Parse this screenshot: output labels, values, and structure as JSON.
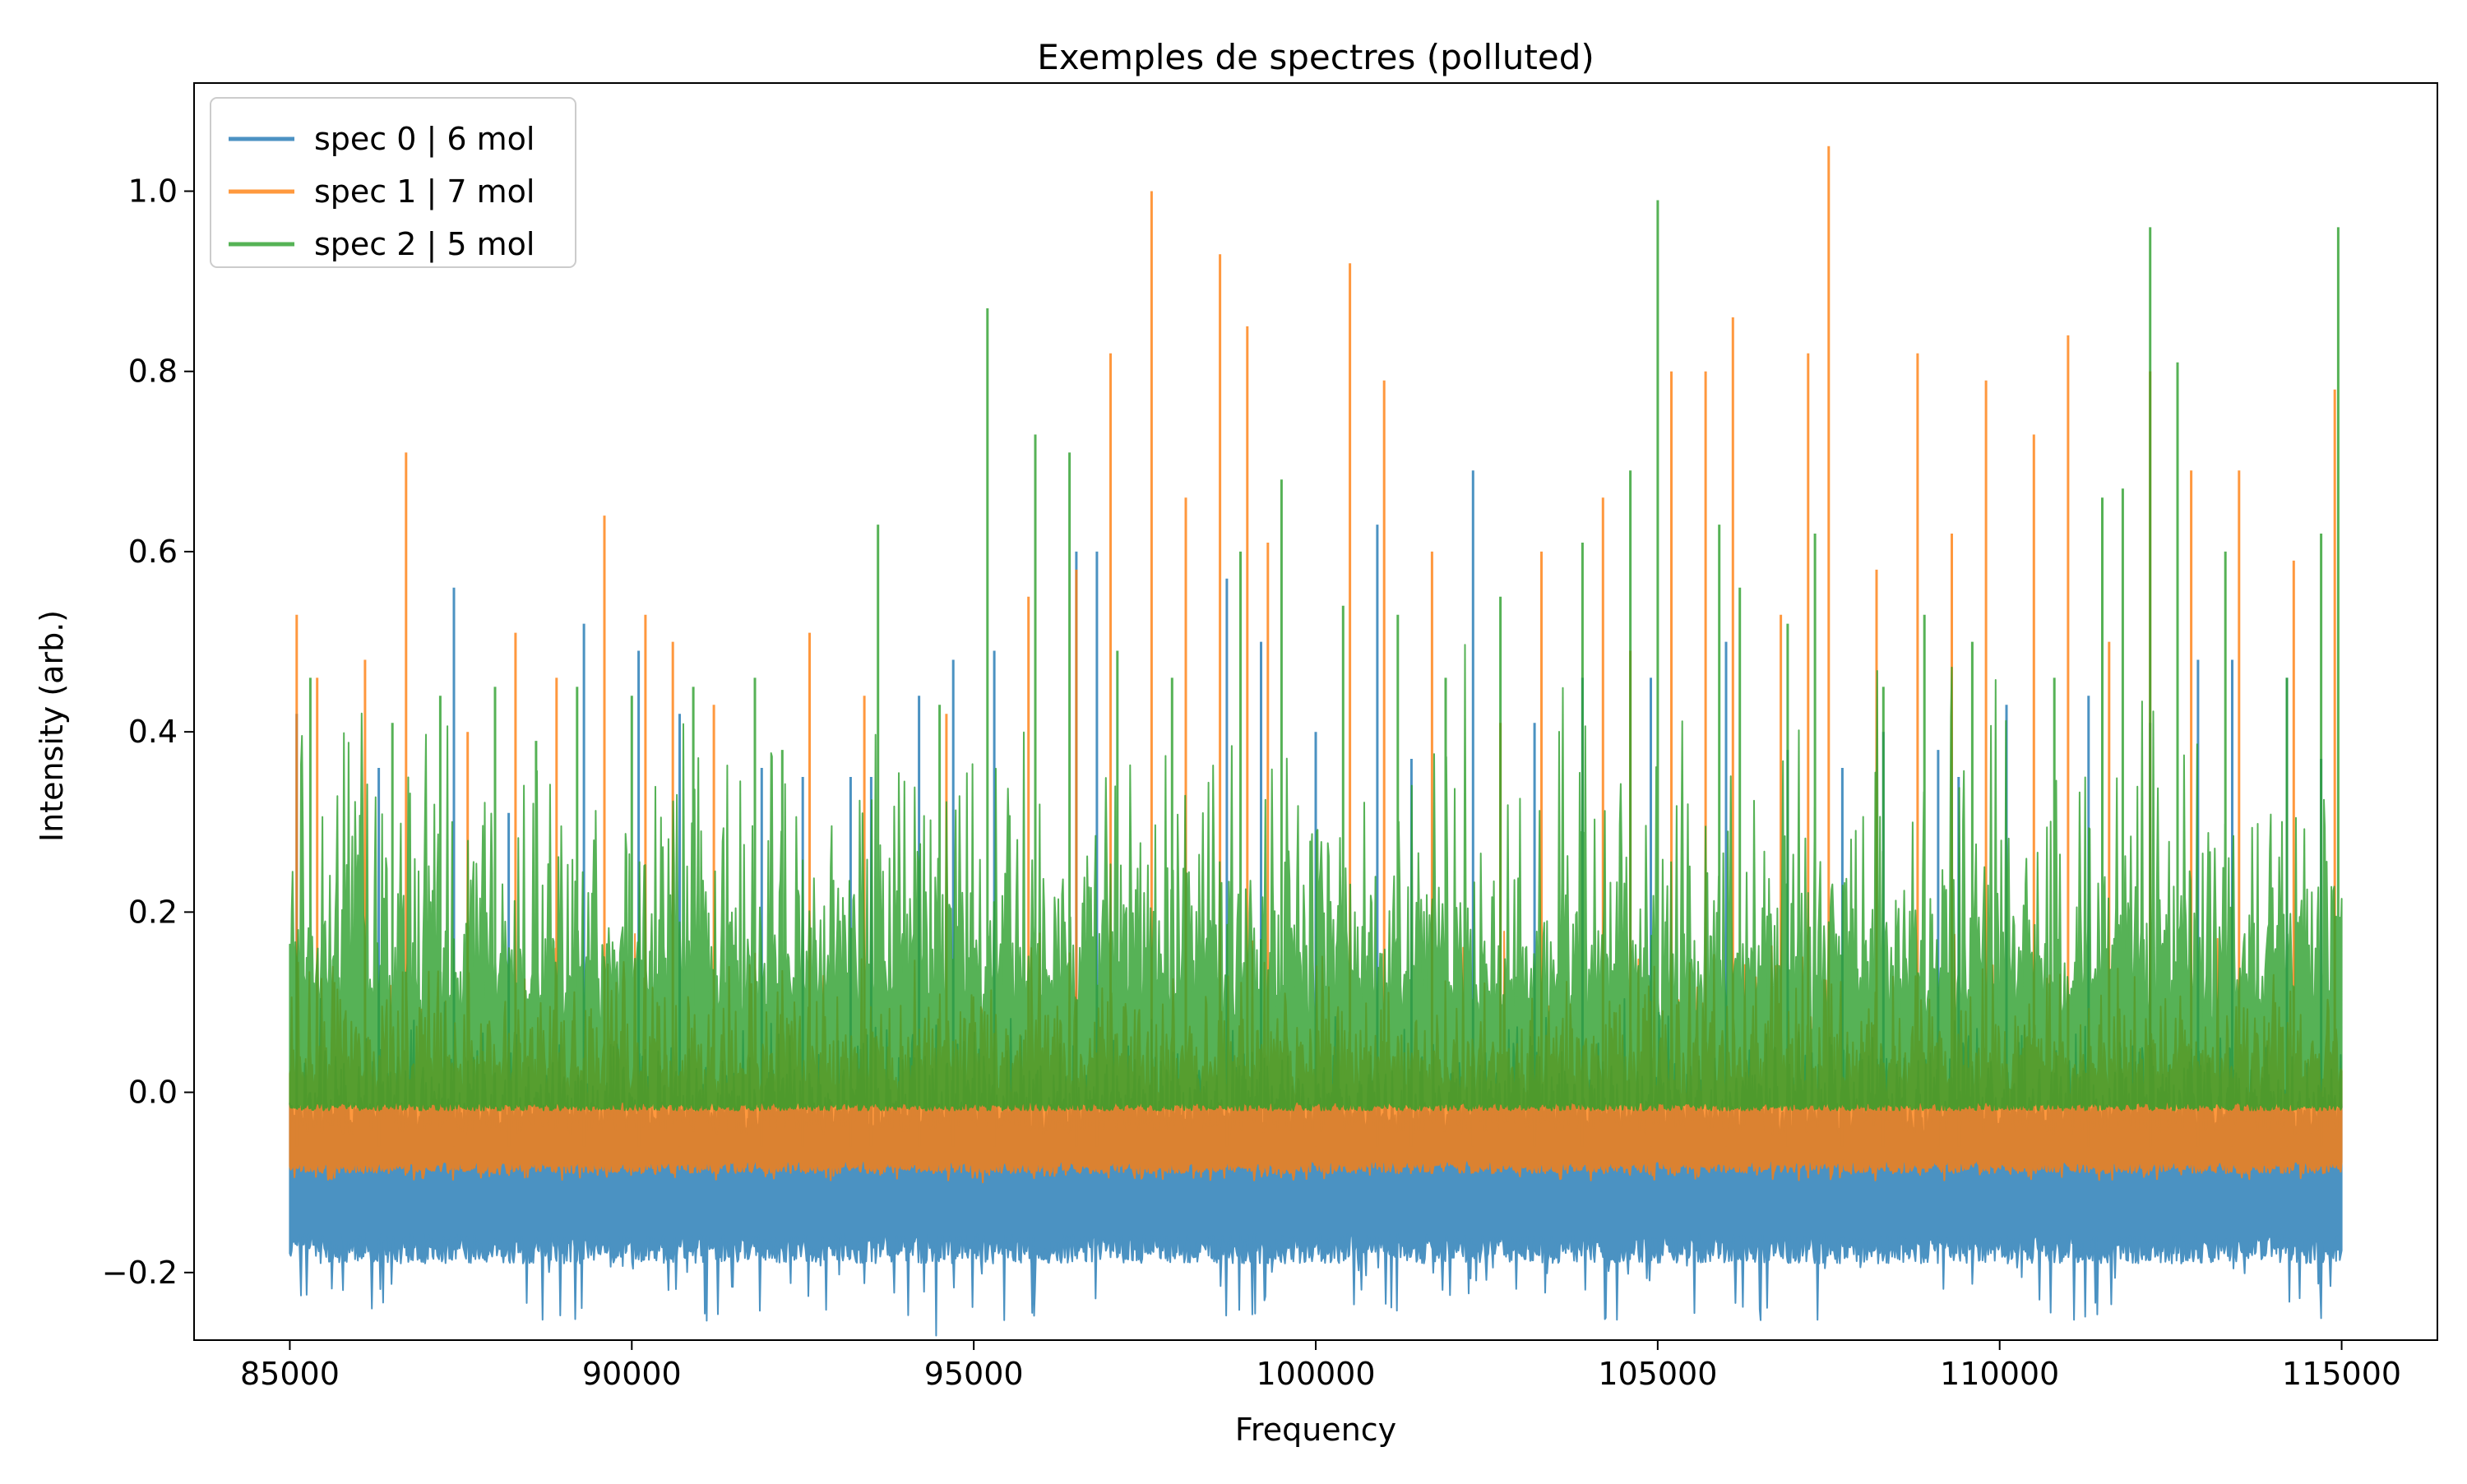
{
  "chart_data": {
    "type": "line",
    "title": "Exemples de spectres (polluted)",
    "xlabel": "Frequency",
    "ylabel": "Intensity (arb.)",
    "xlim": [
      83600,
      116400
    ],
    "ylim": [
      -0.275,
      1.12
    ],
    "x_range": [
      85000,
      115000
    ],
    "xticks": [
      85000,
      90000,
      95000,
      100000,
      105000,
      110000,
      115000
    ],
    "xtick_labels": [
      "85000",
      "90000",
      "95000",
      "100000",
      "105000",
      "110000",
      "115000"
    ],
    "yticks": [
      -0.2,
      0.0,
      0.2,
      0.4,
      0.6,
      0.8,
      1.0
    ],
    "ytick_labels": [
      "−0.2",
      "0.0",
      "0.2",
      "0.4",
      "0.6",
      "0.8",
      "1.0"
    ],
    "grid": false,
    "legend_position": "top-left",
    "series": [
      {
        "name": "spec 0 | 6 mol",
        "color": "#1f77b4",
        "opacity": 0.8,
        "baseline_band": [
          -0.19,
          -0.06
        ],
        "noise_upper": 0.09,
        "min_value": -0.27,
        "peaks": [
          [
            85100,
            0.42
          ],
          [
            86300,
            0.36
          ],
          [
            87400,
            0.56
          ],
          [
            88200,
            0.31
          ],
          [
            89300,
            0.52
          ],
          [
            90100,
            0.49
          ],
          [
            90700,
            0.42
          ],
          [
            91900,
            0.36
          ],
          [
            92500,
            0.35
          ],
          [
            93200,
            0.35
          ],
          [
            93500,
            0.35
          ],
          [
            94200,
            0.44
          ],
          [
            94700,
            0.48
          ],
          [
            95300,
            0.49
          ],
          [
            96500,
            0.6
          ],
          [
            96800,
            0.6
          ],
          [
            98700,
            0.57
          ],
          [
            99200,
            0.5
          ],
          [
            100000,
            0.4
          ],
          [
            100900,
            0.63
          ],
          [
            101400,
            0.37
          ],
          [
            102300,
            0.69
          ],
          [
            103200,
            0.41
          ],
          [
            103900,
            0.46
          ],
          [
            104900,
            0.46
          ],
          [
            106000,
            0.5
          ],
          [
            106900,
            0.38
          ],
          [
            107700,
            0.36
          ],
          [
            108300,
            0.4
          ],
          [
            109100,
            0.38
          ],
          [
            109400,
            0.35
          ],
          [
            110100,
            0.43
          ],
          [
            111300,
            0.44
          ],
          [
            112200,
            0.41
          ],
          [
            112900,
            0.48
          ],
          [
            113400,
            0.48
          ],
          [
            114200,
            0.46
          ],
          [
            114700,
            0.37
          ]
        ]
      },
      {
        "name": "spec 1 | 7 mol",
        "color": "#ff7f0e",
        "opacity": 0.8,
        "baseline_band": [
          -0.09,
          -0.03
        ],
        "noise_upper": 0.12,
        "min_value": -0.1,
        "peaks": [
          [
            85100,
            0.53
          ],
          [
            85400,
            0.46
          ],
          [
            86100,
            0.48
          ],
          [
            86700,
            0.71
          ],
          [
            87600,
            0.4
          ],
          [
            88300,
            0.51
          ],
          [
            88900,
            0.46
          ],
          [
            89600,
            0.64
          ],
          [
            90200,
            0.53
          ],
          [
            90600,
            0.5
          ],
          [
            91200,
            0.43
          ],
          [
            92600,
            0.51
          ],
          [
            93400,
            0.44
          ],
          [
            94600,
            0.42
          ],
          [
            95800,
            0.55
          ],
          [
            96500,
            0.58
          ],
          [
            97000,
            0.82
          ],
          [
            97600,
            1.0
          ],
          [
            98100,
            0.66
          ],
          [
            98600,
            0.93
          ],
          [
            99000,
            0.85
          ],
          [
            99300,
            0.61
          ],
          [
            100500,
            0.92
          ],
          [
            101000,
            0.79
          ],
          [
            101700,
            0.6
          ],
          [
            102700,
            0.41
          ],
          [
            103300,
            0.6
          ],
          [
            104200,
            0.66
          ],
          [
            104600,
            0.49
          ],
          [
            105200,
            0.8
          ],
          [
            105700,
            0.8
          ],
          [
            106100,
            0.86
          ],
          [
            106800,
            0.53
          ],
          [
            107200,
            0.82
          ],
          [
            107500,
            1.05
          ],
          [
            108200,
            0.58
          ],
          [
            108800,
            0.82
          ],
          [
            109300,
            0.62
          ],
          [
            109800,
            0.79
          ],
          [
            110500,
            0.73
          ],
          [
            111000,
            0.84
          ],
          [
            111600,
            0.5
          ],
          [
            112200,
            0.8
          ],
          [
            112800,
            0.69
          ],
          [
            113500,
            0.69
          ],
          [
            114300,
            0.59
          ],
          [
            114900,
            0.78
          ]
        ]
      },
      {
        "name": "spec 2 | 5 mol",
        "color": "#2ca02c",
        "opacity": 0.8,
        "baseline_band": [
          -0.02,
          0.02
        ],
        "noise_upper": 0.25,
        "min_value": -0.02,
        "peaks": [
          [
            85300,
            0.46
          ],
          [
            86500,
            0.41
          ],
          [
            87200,
            0.44
          ],
          [
            88000,
            0.45
          ],
          [
            88600,
            0.39
          ],
          [
            89200,
            0.45
          ],
          [
            90000,
            0.44
          ],
          [
            90900,
            0.45
          ],
          [
            91800,
            0.46
          ],
          [
            92200,
            0.38
          ],
          [
            93600,
            0.63
          ],
          [
            94500,
            0.43
          ],
          [
            95200,
            0.87
          ],
          [
            95900,
            0.73
          ],
          [
            96400,
            0.71
          ],
          [
            97100,
            0.49
          ],
          [
            97900,
            0.46
          ],
          [
            98900,
            0.6
          ],
          [
            99500,
            0.68
          ],
          [
            100400,
            0.54
          ],
          [
            101200,
            0.53
          ],
          [
            101900,
            0.46
          ],
          [
            102700,
            0.55
          ],
          [
            103900,
            0.61
          ],
          [
            104600,
            0.69
          ],
          [
            105000,
            0.99
          ],
          [
            105900,
            0.63
          ],
          [
            106200,
            0.56
          ],
          [
            106900,
            0.52
          ],
          [
            107300,
            0.62
          ],
          [
            108300,
            0.45
          ],
          [
            108900,
            0.53
          ],
          [
            109600,
            0.5
          ],
          [
            110800,
            0.46
          ],
          [
            111500,
            0.66
          ],
          [
            111800,
            0.67
          ],
          [
            112200,
            0.96
          ],
          [
            112600,
            0.81
          ],
          [
            113300,
            0.6
          ],
          [
            114200,
            0.46
          ],
          [
            114700,
            0.62
          ],
          [
            114950,
            0.96
          ]
        ]
      }
    ]
  }
}
